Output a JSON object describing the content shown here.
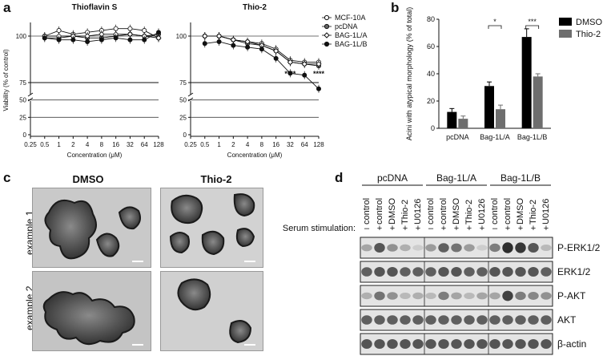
{
  "panel_labels": {
    "a": "a",
    "b": "b",
    "c": "c",
    "d": "d"
  },
  "chart_data": [
    {
      "type": "line",
      "title": "Thioflavin S",
      "xlabel": "Concentration (μM)",
      "ylabel": "Viability (% of control)",
      "x": [
        "0.25",
        "0.5",
        "1",
        "2",
        "4",
        "8",
        "16",
        "32",
        "64",
        "128"
      ],
      "x_log2": [
        -2,
        -1,
        0,
        1,
        2,
        3,
        4,
        5,
        6,
        7
      ],
      "yticks": [
        0,
        25,
        50,
        75,
        100
      ],
      "y_axis_break": true,
      "series": [
        {
          "name": "MCF-10A",
          "marker": "open-circle",
          "values": [
            null,
            100,
            103,
            101,
            102,
            103,
            104,
            104,
            103,
            99
          ]
        },
        {
          "name": "pcDNA",
          "marker": "gray-circle",
          "values": [
            null,
            99,
            99,
            100,
            99,
            99,
            100,
            101,
            100,
            101
          ]
        },
        {
          "name": "BAG-1L/A",
          "marker": "open-diamond",
          "values": [
            null,
            100,
            100,
            100,
            100,
            101,
            101,
            101,
            100,
            99
          ]
        },
        {
          "name": "BAG-1L/B",
          "marker": "black-circle",
          "values": [
            null,
            99,
            98,
            98,
            97,
            98,
            99,
            98,
            98,
            102
          ]
        }
      ]
    },
    {
      "type": "line",
      "title": "Thio-2",
      "xlabel": "Concentration (μM)",
      "ylabel": "Viability (% of control)",
      "x": [
        "0.25",
        "0.5",
        "1",
        "2",
        "4",
        "8",
        "16",
        "32",
        "64",
        "128"
      ],
      "x_log2": [
        -2,
        -1,
        0,
        1,
        2,
        3,
        4,
        5,
        6,
        7
      ],
      "yticks": [
        0,
        25,
        50,
        75,
        100
      ],
      "y_axis_break": true,
      "annotations": [
        {
          "x": "32",
          "text": "****"
        },
        {
          "x": "128",
          "text": "****"
        }
      ],
      "series": [
        {
          "name": "MCF-10A",
          "marker": "open-circle",
          "values": [
            null,
            100,
            100,
            98,
            97,
            96,
            93,
            87,
            86,
            86
          ]
        },
        {
          "name": "pcDNA",
          "marker": "gray-circle",
          "values": [
            null,
            100,
            100,
            98,
            96,
            95,
            92,
            86,
            85,
            84
          ]
        },
        {
          "name": "BAG-1L/A",
          "marker": "open-diamond",
          "values": [
            null,
            100,
            100,
            98,
            97,
            95,
            92,
            86,
            85,
            85
          ]
        },
        {
          "name": "BAG-1L/B",
          "marker": "black-circle",
          "values": [
            null,
            96,
            97,
            95,
            94,
            93,
            88,
            80,
            79,
            66
          ]
        }
      ]
    },
    {
      "type": "bar",
      "ylabel": "Acini with atypical morphology (% of total)",
      "categories": [
        "pcDNA",
        "Bag-1L/A",
        "Bag-1L/B"
      ],
      "ylim": [
        0,
        80
      ],
      "yticks": [
        0,
        20,
        40,
        60,
        80
      ],
      "series": [
        {
          "name": "DMSO",
          "color": "#000000",
          "values": [
            12,
            31,
            67
          ],
          "errors": [
            2.5,
            3,
            6
          ]
        },
        {
          "name": "Thio-2",
          "color": "#6e6e6e",
          "values": [
            7,
            14,
            38
          ],
          "errors": [
            2,
            3,
            2
          ]
        }
      ],
      "significance": [
        {
          "category": "Bag-1L/A",
          "text": "*"
        },
        {
          "category": "Bag-1L/B",
          "text": "***"
        }
      ]
    }
  ],
  "panel_c": {
    "columns": [
      "DMSO",
      "Thio-2"
    ],
    "rows": [
      "example 1",
      "example 2"
    ]
  },
  "panel_d": {
    "groups": [
      "pcDNA",
      "Bag-1L/A",
      "Bag-1L/B"
    ],
    "lanes": [
      "control",
      "control",
      "DMSO",
      "Thio-2",
      "U0126",
      "control",
      "control",
      "DMSO",
      "Thio-2",
      "U0126",
      "control",
      "control",
      "DMSO",
      "Thio-2",
      "U0126"
    ],
    "serum_label": "Serum stimulation:",
    "serum": [
      "–",
      "+",
      "+",
      "+",
      "+",
      "–",
      "+",
      "+",
      "+",
      "+",
      "–",
      "+",
      "+",
      "+",
      "+"
    ],
    "blots": [
      {
        "label": "P-ERK1/2",
        "intensities": [
          0.35,
          0.75,
          0.45,
          0.3,
          0.15,
          0.4,
          0.7,
          0.6,
          0.4,
          0.15,
          0.55,
          0.95,
          0.9,
          0.75,
          0.25
        ]
      },
      {
        "label": "ERK1/2",
        "intensities": [
          0.7,
          0.75,
          0.75,
          0.7,
          0.7,
          0.7,
          0.75,
          0.75,
          0.7,
          0.7,
          0.75,
          0.75,
          0.75,
          0.75,
          0.7
        ]
      },
      {
        "label": "P-AKT",
        "intensities": [
          0.3,
          0.6,
          0.45,
          0.25,
          0.3,
          0.25,
          0.55,
          0.35,
          0.25,
          0.35,
          0.35,
          0.85,
          0.55,
          0.5,
          0.45
        ]
      },
      {
        "label": "AKT",
        "intensities": [
          0.7,
          0.7,
          0.7,
          0.7,
          0.7,
          0.7,
          0.7,
          0.7,
          0.7,
          0.7,
          0.7,
          0.7,
          0.7,
          0.7,
          0.7
        ]
      },
      {
        "label": "β-actin",
        "intensities": [
          0.75,
          0.75,
          0.75,
          0.75,
          0.75,
          0.75,
          0.75,
          0.75,
          0.75,
          0.75,
          0.75,
          0.75,
          0.75,
          0.75,
          0.75
        ]
      }
    ]
  }
}
